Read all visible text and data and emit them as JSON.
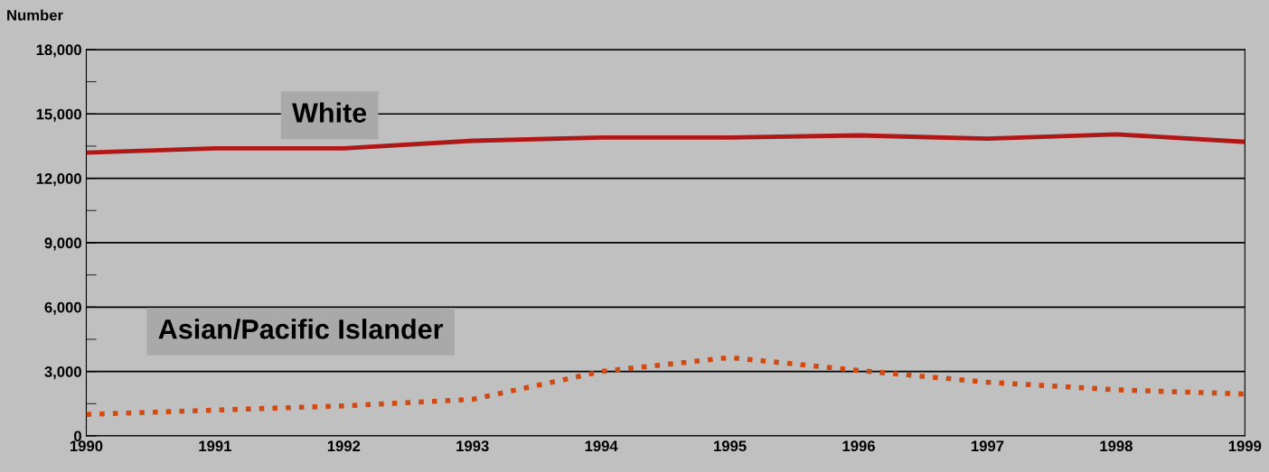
{
  "chart_data": {
    "type": "line",
    "ylabel": "Number",
    "x": [
      1990,
      1991,
      1992,
      1993,
      1994,
      1995,
      1996,
      1997,
      1998,
      1999
    ],
    "series": [
      {
        "name": "White",
        "color": "#b01818",
        "values": [
          13200,
          13400,
          13400,
          13750,
          13900,
          13900,
          14000,
          13850,
          14050,
          13700
        ]
      },
      {
        "name": "Asian/Pacific Islander",
        "color": "#d04a14",
        "line_style": "dotted",
        "values": [
          1000,
          1200,
          1400,
          1700,
          3000,
          3650,
          3050,
          2500,
          2150,
          1950
        ]
      }
    ],
    "xlim": [
      1990,
      1999
    ],
    "xticks": [
      1990,
      1991,
      1992,
      1993,
      1994,
      1995,
      1996,
      1997,
      1998,
      1999
    ],
    "ylim": [
      0,
      18000
    ],
    "yticks": [
      {
        "value": 0,
        "label": "0"
      },
      {
        "value": 1500,
        "label": null
      },
      {
        "value": 3000,
        "label": "3,000"
      },
      {
        "value": 4500,
        "label": null
      },
      {
        "value": 6000,
        "label": "6,000"
      },
      {
        "value": 7500,
        "label": null
      },
      {
        "value": 9000,
        "label": "9,000"
      },
      {
        "value": 10500,
        "label": null
      },
      {
        "value": 12000,
        "label": "12,000"
      },
      {
        "value": 13500,
        "label": null
      },
      {
        "value": 15000,
        "label": "15,000"
      },
      {
        "value": 16500,
        "label": null
      },
      {
        "value": 18000,
        "label": "18,000"
      }
    ],
    "grid": "y",
    "line_style": "solid",
    "marker": "none"
  }
}
